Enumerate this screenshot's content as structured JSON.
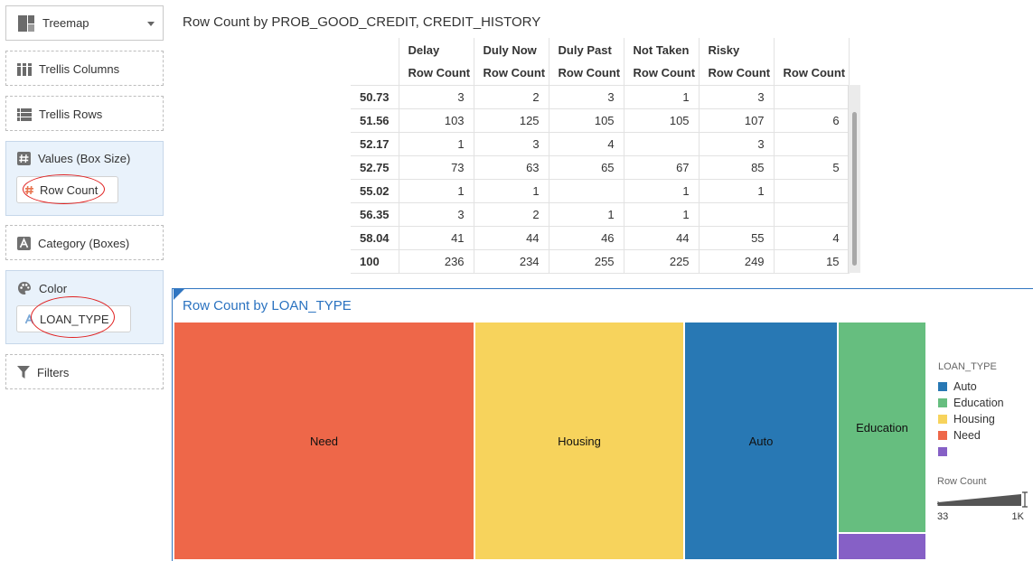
{
  "left_panel": {
    "visualization": {
      "label": "Treemap",
      "icon": "treemap-icon"
    },
    "drop_targets": {
      "trellis_columns": {
        "label": "Trellis Columns",
        "icon": "trellis-columns-icon"
      },
      "trellis_rows": {
        "label": "Trellis Rows",
        "icon": "trellis-rows-icon"
      },
      "values": {
        "label": "Values (Box Size)",
        "icon": "hash-icon",
        "item": "Row Count"
      },
      "category": {
        "label": "Category (Boxes)",
        "icon": "text-a-icon"
      },
      "color": {
        "label": "Color",
        "icon": "palette-icon",
        "item": "LOAN_TYPE"
      },
      "filters": {
        "label": "Filters",
        "icon": "filter-icon"
      }
    }
  },
  "pivot_table": {
    "title": "Row Count by PROB_GOOD_CREDIT, CREDIT_HISTORY",
    "column_groups": [
      "Delay",
      "Duly Now",
      "Duly Past",
      "Not Taken",
      "Risky",
      ""
    ],
    "measure_label": "Row Count",
    "rows": [
      {
        "key": "50.73",
        "values": [
          "3",
          "2",
          "3",
          "1",
          "3",
          ""
        ]
      },
      {
        "key": "51.56",
        "values": [
          "103",
          "125",
          "105",
          "105",
          "107",
          "6"
        ]
      },
      {
        "key": "52.17",
        "values": [
          "1",
          "3",
          "4",
          "",
          "3",
          ""
        ]
      },
      {
        "key": "52.75",
        "values": [
          "73",
          "63",
          "65",
          "67",
          "85",
          "5"
        ]
      },
      {
        "key": "55.02",
        "values": [
          "1",
          "1",
          "",
          "1",
          "1",
          ""
        ]
      },
      {
        "key": "56.35",
        "values": [
          "3",
          "2",
          "1",
          "1",
          "",
          ""
        ]
      },
      {
        "key": "58.04",
        "values": [
          "41",
          "44",
          "46",
          "44",
          "55",
          "4"
        ]
      },
      {
        "key": "100",
        "values": [
          "236",
          "234",
          "255",
          "225",
          "249",
          "15"
        ]
      }
    ]
  },
  "treemap": {
    "title": "Row Count by LOAN_TYPE",
    "colors": {
      "Need": "#ee6749",
      "Housing": "#f7d35c",
      "Auto": "#2878b4",
      "Education": "#66be7f",
      "(blank)": "#8660c6"
    },
    "tiles": [
      {
        "label": "Need",
        "color_key": "Need"
      },
      {
        "label": "Housing",
        "color_key": "Housing"
      },
      {
        "label": "Auto",
        "color_key": "Auto"
      },
      {
        "label": "Education",
        "color_key": "Education"
      },
      {
        "label": "",
        "color_key": "(blank)"
      }
    ],
    "legend": {
      "title": "LOAN_TYPE",
      "items": [
        {
          "label": "Auto",
          "color": "#2878b4"
        },
        {
          "label": "Education",
          "color": "#66be7f"
        },
        {
          "label": "Housing",
          "color": "#f7d35c"
        },
        {
          "label": "Need",
          "color": "#ee6749"
        },
        {
          "label": "",
          "color": "#8660c6"
        }
      ]
    },
    "size_legend": {
      "title": "Row Count",
      "min": "33",
      "max": "1K"
    }
  }
}
